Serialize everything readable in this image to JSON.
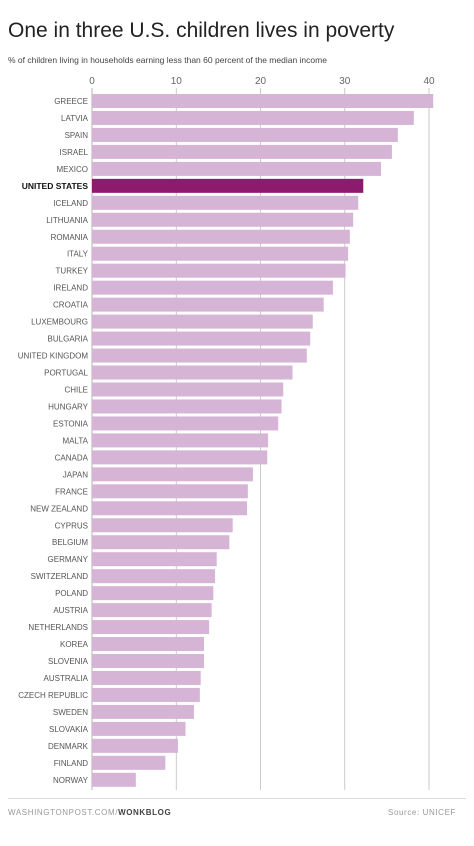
{
  "chart_data": {
    "type": "bar",
    "orientation": "horizontal",
    "title": "One in three U.S. children lives in poverty",
    "subtitle": "% of children living in households earning less than 60 percent of the median income",
    "xlim": [
      0,
      40
    ],
    "xticks": [
      0,
      10,
      20,
      30,
      40
    ],
    "grid": true,
    "highlight": "UNITED STATES",
    "categories": [
      "GREECE",
      "LATVIA",
      "SPAIN",
      "ISRAEL",
      "MEXICO",
      "UNITED STATES",
      "ICELAND",
      "LITHUANIA",
      "ROMANIA",
      "ITALY",
      "TURKEY",
      "IRELAND",
      "CROATIA",
      "LUXEMBOURG",
      "BULGARIA",
      "UNITED KINGDOM",
      "PORTUGAL",
      "CHILE",
      "HUNGARY",
      "ESTONIA",
      "MALTA",
      "CANADA",
      "JAPAN",
      "FRANCE",
      "NEW ZEALAND",
      "CYPRUS",
      "BELGIUM",
      "GERMANY",
      "SWITZERLAND",
      "POLAND",
      "AUSTRIA",
      "NETHERLANDS",
      "KOREA",
      "SLOVENIA",
      "AUSTRALIA",
      "CZECH REPUBLIC",
      "SWEDEN",
      "SLOVAKIA",
      "DENMARK",
      "FINLAND",
      "NORWAY"
    ],
    "values": [
      40.5,
      38.2,
      36.3,
      35.6,
      34.3,
      32.2,
      31.6,
      31.0,
      30.6,
      30.4,
      30.1,
      28.6,
      27.5,
      26.2,
      25.9,
      25.5,
      23.8,
      22.7,
      22.5,
      22.1,
      20.9,
      20.8,
      19.1,
      18.5,
      18.4,
      16.7,
      16.3,
      14.8,
      14.6,
      14.4,
      14.2,
      13.9,
      13.3,
      13.3,
      12.9,
      12.8,
      12.1,
      11.1,
      10.2,
      8.7,
      5.2
    ],
    "colors": {
      "bar": "#d6b4d6",
      "highlight": "#8e1a6e",
      "grid": "#bdbdbd",
      "label": "#555555",
      "highlight_label": "#111111"
    }
  },
  "footer": {
    "source_prefix": "WASHINGTONPOST.COM/",
    "source_blog": "WONKBLOG",
    "credit": "Source: UNICEF"
  }
}
